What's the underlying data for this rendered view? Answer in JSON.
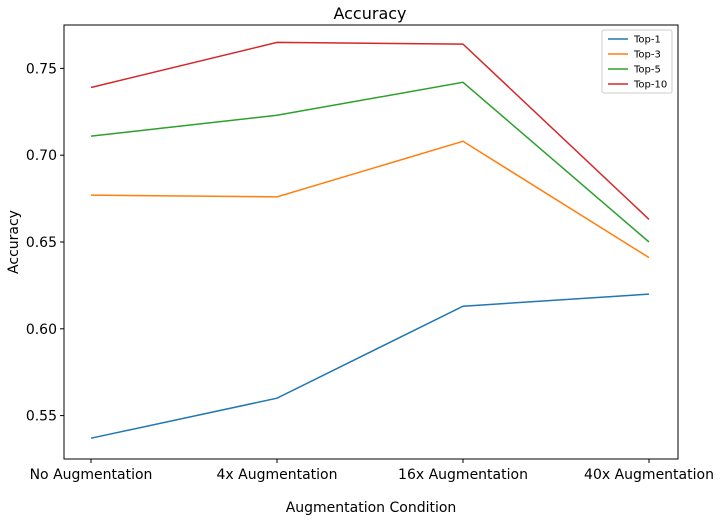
{
  "chart_data": {
    "type": "line",
    "title": "Accuracy",
    "xlabel": "Augmentation Condition",
    "ylabel": "Accuracy",
    "categories": [
      "No Augmentation",
      "4x Augmentation",
      "16x Augmentation",
      "40x Augmentation"
    ],
    "ylim": [
      0.525,
      0.775
    ],
    "yticks": [
      "0.55",
      "0.60",
      "0.65",
      "0.70",
      "0.75"
    ],
    "grid": false,
    "legend_position": "top-right",
    "series": [
      {
        "name": "Top-1",
        "color": "#1f77b4",
        "values": [
          0.537,
          0.56,
          0.613,
          0.62
        ]
      },
      {
        "name": "Top-3",
        "color": "#ff7f0e",
        "values": [
          0.677,
          0.676,
          0.708,
          0.641
        ]
      },
      {
        "name": "Top-5",
        "color": "#2ca02c",
        "values": [
          0.711,
          0.723,
          0.742,
          0.65
        ]
      },
      {
        "name": "Top-10",
        "color": "#d62728",
        "values": [
          0.739,
          0.765,
          0.764,
          0.663
        ]
      }
    ]
  }
}
